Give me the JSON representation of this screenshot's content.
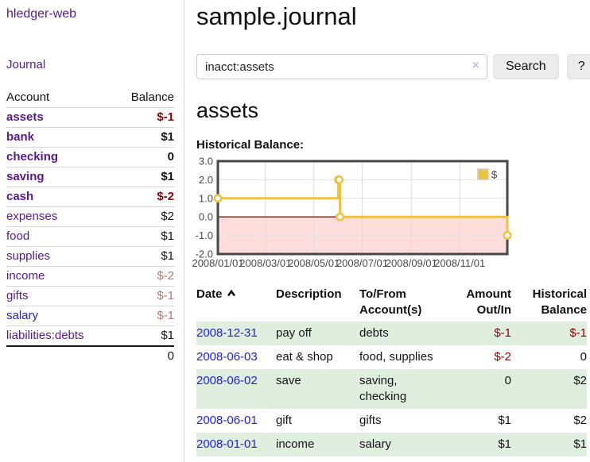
{
  "app": {
    "brand": "hledger-web"
  },
  "sidebar": {
    "journal_link": "Journal",
    "accounts_header": {
      "account": "Account",
      "balance": "Balance"
    },
    "accounts": [
      {
        "name": "assets",
        "balance": "$-1",
        "depth": 1,
        "bold": true,
        "balance_tone": "negative-strong",
        "link_tone": "purple"
      },
      {
        "name": "bank",
        "balance": "$1",
        "depth": 2,
        "bold": true,
        "balance_tone": "normal",
        "link_tone": "purple"
      },
      {
        "name": "checking",
        "balance": "0",
        "depth": 3,
        "bold": true,
        "balance_tone": "normal",
        "link_tone": "purple"
      },
      {
        "name": "saving",
        "balance": "$1",
        "depth": 3,
        "bold": true,
        "balance_tone": "normal",
        "link_tone": "purple"
      },
      {
        "name": "cash",
        "balance": "$-2",
        "depth": 2,
        "bold": true,
        "balance_tone": "negative-strong",
        "link_tone": "purple"
      },
      {
        "name": "expenses",
        "balance": "$2",
        "depth": 1,
        "bold": false,
        "balance_tone": "normal",
        "link_tone": "purple"
      },
      {
        "name": "food",
        "balance": "$1",
        "depth": 2,
        "bold": false,
        "balance_tone": "normal",
        "link_tone": "purple"
      },
      {
        "name": "supplies",
        "balance": "$1",
        "depth": 2,
        "bold": false,
        "balance_tone": "normal",
        "link_tone": "purple"
      },
      {
        "name": "income",
        "balance": "$-2",
        "depth": 1,
        "bold": false,
        "balance_tone": "negative-soft",
        "link_tone": "purple"
      },
      {
        "name": "gifts",
        "balance": "$-1",
        "depth": 2,
        "bold": false,
        "balance_tone": "negative-soft",
        "link_tone": "purple"
      },
      {
        "name": "salary",
        "balance": "$-1",
        "depth": 2,
        "bold": false,
        "balance_tone": "negative-soft",
        "link_tone": "blue"
      },
      {
        "name": "liabilities:debts",
        "balance": "$1",
        "depth": 1,
        "bold": false,
        "balance_tone": "normal",
        "link_tone": "purple"
      }
    ],
    "total": "0"
  },
  "main": {
    "title": "sample.journal",
    "search": {
      "value": "inacct:assets",
      "clear_icon": "×",
      "search_button": "Search",
      "help_button": "?"
    },
    "account_heading": "assets"
  },
  "chart_data": {
    "type": "line",
    "title": "Historical Balance:",
    "x_range": [
      "2008-01-01",
      "2008-12-31"
    ],
    "x_tick_labels": [
      "2008/01/01",
      "2008/03/01",
      "2008/05/01",
      "2008/07/01",
      "2008/09/01",
      "2008/11/01"
    ],
    "y_ticks": [
      3.0,
      2.0,
      1.0,
      0.0,
      -1.0,
      -2.0
    ],
    "ylim": [
      -2,
      3
    ],
    "grid": true,
    "legend_position": "top-right",
    "series": [
      {
        "name": "$",
        "color": "#edc240",
        "step": true,
        "points": [
          [
            "2008-01-01",
            1
          ],
          [
            "2008-06-01",
            2
          ],
          [
            "2008-06-02",
            2
          ],
          [
            "2008-06-03",
            0
          ],
          [
            "2008-12-31",
            -1
          ]
        ]
      }
    ],
    "negative_region_color": "#ffdddd",
    "zero_line_color": "#8b1c1c"
  },
  "register": {
    "columns": [
      {
        "label": "Date",
        "align": "left",
        "sorted": "asc"
      },
      {
        "label": "Description",
        "align": "left"
      },
      {
        "label": "To/From Account(s)",
        "align": "left"
      },
      {
        "label": "Amount Out/In",
        "align": "right"
      },
      {
        "label": "Historical Balance",
        "align": "right"
      }
    ],
    "rows": [
      {
        "date": "2008-12-31",
        "description": "pay off",
        "to_from": "debts",
        "amount": "$-1",
        "amount_tone": "negative",
        "balance": "$-1",
        "balance_tone": "negative"
      },
      {
        "date": "2008-06-03",
        "description": "eat & shop",
        "to_from": "food, supplies",
        "amount": "$-2",
        "amount_tone": "negative",
        "balance": "0",
        "balance_tone": "normal"
      },
      {
        "date": "2008-06-02",
        "description": "save",
        "to_from": "saving, checking",
        "amount": "0",
        "amount_tone": "normal",
        "balance": "$2",
        "balance_tone": "normal"
      },
      {
        "date": "2008-06-01",
        "description": "gift",
        "to_from": "gifts",
        "amount": "$1",
        "amount_tone": "normal",
        "balance": "$2",
        "balance_tone": "normal"
      },
      {
        "date": "2008-01-01",
        "description": "income",
        "to_from": "salary",
        "amount": "$1",
        "amount_tone": "normal",
        "balance": "$1",
        "balance_tone": "normal"
      }
    ]
  },
  "colors": {
    "accent_purple": "#551a8b",
    "link_blue": "#2222cc",
    "negative_strong": "#8f0000",
    "negative_soft": "#b87676",
    "row_stripe_green": "#e0eee0",
    "series_yellow": "#edc240",
    "negative_region_pink": "#ffdddd"
  }
}
